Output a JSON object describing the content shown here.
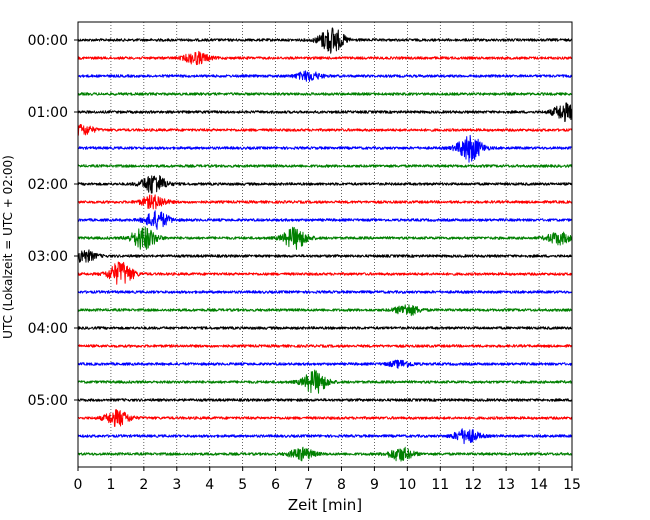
{
  "chart_data": {
    "type": "line",
    "title": "",
    "xlabel": "Zeit  [min]",
    "ylabel": "UTC (Lokalzeit = UTC + 02:00)",
    "xlim": [
      0,
      15
    ],
    "x_ticks": [
      0,
      1,
      2,
      3,
      4,
      5,
      6,
      7,
      8,
      9,
      10,
      11,
      12,
      13,
      14,
      15
    ],
    "x_tick_labels": [
      "0",
      "1",
      "2",
      "3",
      "4",
      "5",
      "6",
      "7",
      "8",
      "9",
      "10",
      "11",
      "12",
      "13",
      "14",
      "15"
    ],
    "y_tick_labels": [
      "00:00",
      "01:00",
      "02:00",
      "03:00",
      "04:00",
      "05:00"
    ],
    "y_tick_rows": [
      0,
      4,
      8,
      12,
      16,
      20
    ],
    "grid": "vertical dotted at each minute",
    "colors_cycle": [
      "#000000",
      "#ff0000",
      "#0000ff",
      "#008000"
    ],
    "minutes_per_row": 15,
    "rows": [
      {
        "start": "00:00",
        "events": [
          {
            "t": 7.7,
            "amp": 1.0
          }
        ]
      },
      {
        "start": "00:15",
        "events": [
          {
            "t": 3.6,
            "amp": 0.45
          }
        ]
      },
      {
        "start": "00:30",
        "events": [
          {
            "t": 7.0,
            "amp": 0.35
          }
        ]
      },
      {
        "start": "00:45",
        "events": []
      },
      {
        "start": "01:00",
        "events": [
          {
            "t": 14.8,
            "amp": 0.65
          }
        ]
      },
      {
        "start": "01:15",
        "events": [
          {
            "t": 0.1,
            "amp": 0.4
          }
        ]
      },
      {
        "start": "01:30",
        "events": [
          {
            "t": 11.9,
            "amp": 1.0
          }
        ]
      },
      {
        "start": "01:45",
        "events": []
      },
      {
        "start": "02:00",
        "events": [
          {
            "t": 2.3,
            "amp": 0.75
          }
        ]
      },
      {
        "start": "02:15",
        "events": [
          {
            "t": 2.3,
            "amp": 0.5
          }
        ]
      },
      {
        "start": "02:30",
        "events": [
          {
            "t": 2.4,
            "amp": 0.65
          }
        ]
      },
      {
        "start": "02:45",
        "events": [
          {
            "t": 2.0,
            "amp": 0.9
          },
          {
            "t": 6.6,
            "amp": 0.8
          },
          {
            "t": 14.6,
            "amp": 0.45
          }
        ]
      },
      {
        "start": "03:00",
        "events": [
          {
            "t": 0.15,
            "amp": 0.5
          }
        ]
      },
      {
        "start": "03:15",
        "events": [
          {
            "t": 1.3,
            "amp": 0.9
          }
        ]
      },
      {
        "start": "03:30",
        "events": []
      },
      {
        "start": "03:45",
        "events": [
          {
            "t": 10.0,
            "amp": 0.4
          }
        ]
      },
      {
        "start": "04:00",
        "events": []
      },
      {
        "start": "04:15",
        "events": []
      },
      {
        "start": "04:30",
        "events": [
          {
            "t": 9.8,
            "amp": 0.25
          }
        ]
      },
      {
        "start": "04:45",
        "events": [
          {
            "t": 7.2,
            "amp": 0.85
          }
        ]
      },
      {
        "start": "05:00",
        "events": []
      },
      {
        "start": "05:15",
        "events": [
          {
            "t": 1.2,
            "amp": 0.6
          }
        ]
      },
      {
        "start": "05:30",
        "events": [
          {
            "t": 11.8,
            "amp": 0.55
          }
        ]
      },
      {
        "start": "05:45",
        "events": [
          {
            "t": 6.8,
            "amp": 0.45
          },
          {
            "t": 9.8,
            "amp": 0.5
          }
        ]
      }
    ]
  }
}
